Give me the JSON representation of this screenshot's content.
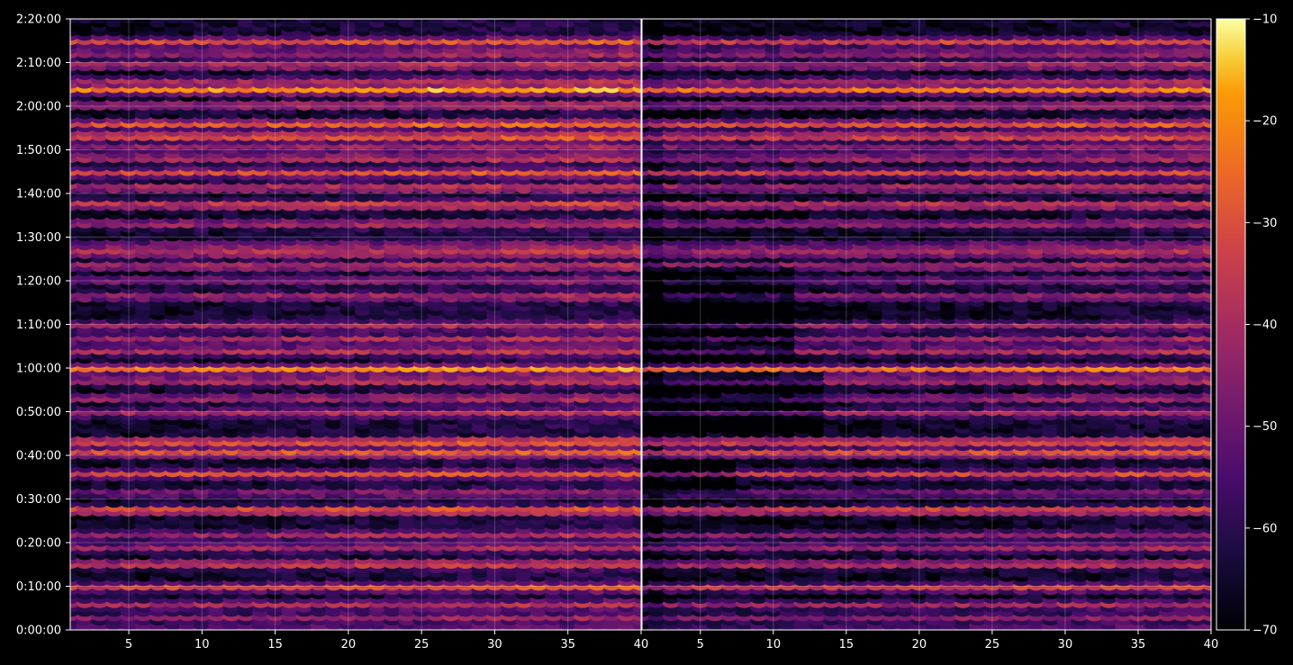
{
  "chart_data": {
    "type": "heatmap",
    "title": "",
    "xlabel": "",
    "ylabel": "",
    "panels": [
      {
        "name": "",
        "xlim": [
          1,
          40
        ],
        "x_ticks": [
          5,
          10,
          15,
          20,
          25,
          30,
          35,
          40
        ],
        "x_tick_labels": [
          "5",
          "10",
          "15",
          "20",
          "25",
          "30",
          "35",
          "40"
        ]
      },
      {
        "name": "",
        "xlim": [
          1,
          40
        ],
        "x_ticks": [
          5,
          10,
          15,
          20,
          25,
          30,
          35,
          40
        ],
        "x_tick_labels": [
          "5",
          "10",
          "15",
          "20",
          "25",
          "30",
          "35",
          "40"
        ]
      }
    ],
    "ylim_seconds": [
      0,
      8400
    ],
    "y_ticks_seconds": [
      0,
      600,
      1200,
      1800,
      2400,
      3000,
      3600,
      4200,
      4800,
      5400,
      6000,
      6600,
      7200,
      7800,
      8400
    ],
    "y_tick_labels": [
      "0:00:00",
      "0:10:00",
      "0:20:00",
      "0:30:00",
      "0:40:00",
      "0:50:00",
      "1:00:00",
      "1:10:00",
      "1:20:00",
      "1:30:00",
      "1:40:00",
      "1:50:00",
      "2:00:00",
      "2:10:00",
      "2:20:00"
    ],
    "grid": true,
    "colorbar": {
      "colormap": "inferno",
      "range": [
        -70,
        -10
      ],
      "ticks": [
        -70,
        -60,
        -50,
        -40,
        -30,
        -20,
        -10
      ],
      "tick_labels": [
        "−70",
        "−60",
        "−50",
        "−40",
        "−30",
        "−20",
        "−10"
      ]
    },
    "bright_bands": [
      {
        "t": 8100,
        "level": -33,
        "width": 0.9
      },
      {
        "t": 7940,
        "level": -40,
        "width": 0.6
      },
      {
        "t": 7780,
        "level": -35,
        "width": 0.8
      },
      {
        "t": 7560,
        "level": -42,
        "width": 0.6
      },
      {
        "t": 7440,
        "level": -22,
        "width": 1.0
      },
      {
        "t": 7230,
        "level": -38,
        "width": 0.6
      },
      {
        "t": 6970,
        "level": -26,
        "width": 1.0
      },
      {
        "t": 6800,
        "level": -24,
        "width": 1.0
      },
      {
        "t": 6650,
        "level": -42,
        "width": 0.6
      },
      {
        "t": 6500,
        "level": -36,
        "width": 0.7
      },
      {
        "t": 6300,
        "level": -33,
        "width": 0.8
      },
      {
        "t": 6100,
        "level": -35,
        "width": 0.8
      },
      {
        "t": 5860,
        "level": -30,
        "width": 1.0
      },
      {
        "t": 5600,
        "level": -39,
        "width": 0.7
      },
      {
        "t": 5300,
        "level": -44,
        "width": 0.6
      },
      {
        "t": 5200,
        "level": -34,
        "width": 0.8
      },
      {
        "t": 5020,
        "level": -37,
        "width": 0.7
      },
      {
        "t": 4820,
        "level": -46,
        "width": 0.6
      },
      {
        "t": 4600,
        "level": -40,
        "width": 0.7
      },
      {
        "t": 4200,
        "level": -42,
        "width": 0.6
      },
      {
        "t": 4010,
        "level": -40,
        "width": 0.6
      },
      {
        "t": 3850,
        "level": -38,
        "width": 0.7
      },
      {
        "t": 3600,
        "level": -25,
        "width": 1.0
      },
      {
        "t": 3440,
        "level": -36,
        "width": 0.7
      },
      {
        "t": 3200,
        "level": -40,
        "width": 0.7
      },
      {
        "t": 3000,
        "level": -42,
        "width": 0.6
      },
      {
        "t": 2600,
        "level": -24,
        "width": 1.0
      },
      {
        "t": 2450,
        "level": -27,
        "width": 1.0
      },
      {
        "t": 2160,
        "level": -33,
        "width": 0.8
      },
      {
        "t": 1900,
        "level": -46,
        "width": 0.6
      },
      {
        "t": 1660,
        "level": -25,
        "width": 1.0
      },
      {
        "t": 1320,
        "level": -44,
        "width": 0.6
      },
      {
        "t": 1150,
        "level": -40,
        "width": 0.7
      },
      {
        "t": 920,
        "level": -32,
        "width": 0.9
      },
      {
        "t": 600,
        "level": -34,
        "width": 0.8
      },
      {
        "t": 360,
        "level": -42,
        "width": 0.6
      },
      {
        "t": 180,
        "level": -46,
        "width": 0.6
      },
      {
        "t": 20,
        "level": -48,
        "width": 0.5
      }
    ]
  }
}
